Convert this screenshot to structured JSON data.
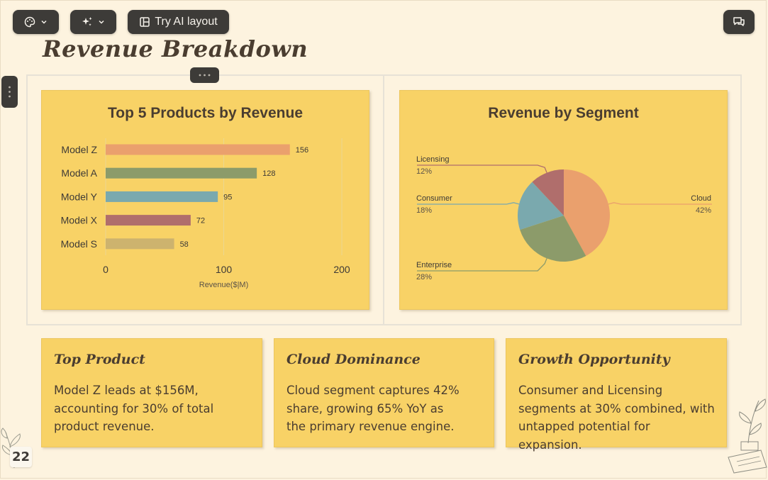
{
  "toolbar": {
    "theme_icon": "palette-icon",
    "ai_icon": "sparkles-icon",
    "layout_icon": "layout-icon",
    "try_ai_layout_label": "Try AI layout",
    "comments_icon": "comments-icon"
  },
  "slide": {
    "title": "Revenue Breakdown",
    "page_number": "22"
  },
  "chart_data": [
    {
      "type": "bar",
      "title": "Top 5 Products by Revenue",
      "categories": [
        "Model Z",
        "Model A",
        "Model Y",
        "Model X",
        "Model S"
      ],
      "values": [
        156,
        128,
        95,
        72,
        58
      ],
      "xlabel": "Revenue($|M)",
      "xlim": [
        0,
        200
      ],
      "xticks": [
        "0",
        "100",
        "200"
      ],
      "data_labels": [
        "156",
        "128",
        "95",
        "72",
        "58"
      ],
      "colors": [
        "#eaa06d",
        "#8c9b6a",
        "#7aa9ae",
        "#b06e6c",
        "#cdb36e"
      ]
    },
    {
      "type": "pie",
      "title": "Revenue by Segment",
      "labels": [
        "Cloud",
        "Enterprise",
        "Consumer",
        "Licensing"
      ],
      "values": [
        42,
        28,
        18,
        12
      ],
      "value_labels": [
        "42%",
        "28%",
        "18%",
        "12%"
      ],
      "colors": [
        "#eaa06d",
        "#8c9b6a",
        "#7aa9ae",
        "#b06e6c"
      ]
    }
  ],
  "insights": [
    {
      "title": "Top Product",
      "text": "Model Z leads at $156M, accounting for 30% of total product revenue."
    },
    {
      "title": "Cloud Dominance",
      "text": "Cloud segment captures 42% share, growing 65% YoY as the primary revenue engine."
    },
    {
      "title": "Growth Opportunity",
      "text": "Consumer and Licensing segments at 30% combined, with untapped potential for expansion."
    }
  ]
}
